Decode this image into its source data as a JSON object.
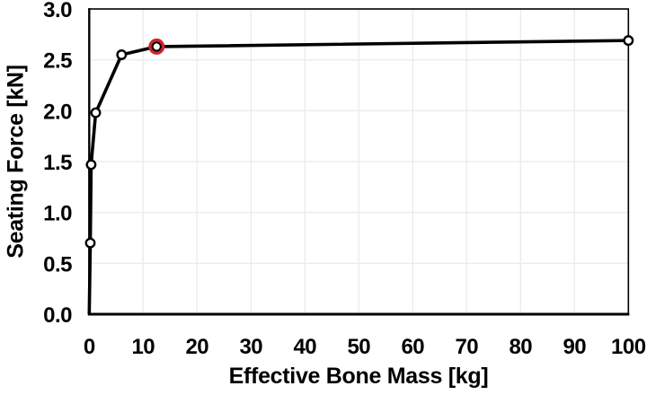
{
  "chart_data": {
    "type": "line",
    "title": "",
    "xlabel": "Effective Bone Mass [kg]",
    "ylabel": "Seating Force [kN]",
    "xlim": [
      0,
      100
    ],
    "ylim": [
      0,
      3
    ],
    "x_ticks": [
      "0",
      "10",
      "20",
      "30",
      "40",
      "50",
      "60",
      "70",
      "80",
      "90",
      "100"
    ],
    "y_ticks": [
      "0.0",
      "0.5",
      "1.0",
      "1.5",
      "2.0",
      "2.5",
      "3.0"
    ],
    "grid": true,
    "legend": "none",
    "background": "#ffffff",
    "axis_color": "#000000",
    "grid_color": "#ebebeb",
    "series": [
      {
        "name": "seating-force-vs-bone-mass",
        "color": "#000000",
        "marker": "open-circle",
        "marker_fill": "#ffffff",
        "points": [
          {
            "x": 0,
            "y": 0,
            "marker": false
          },
          {
            "x": 0.2,
            "y": 0.7,
            "marker": true
          },
          {
            "x": 0.35,
            "y": 1.47,
            "marker": true
          },
          {
            "x": 1.2,
            "y": 1.98,
            "marker": true
          },
          {
            "x": 6,
            "y": 2.55,
            "marker": true
          },
          {
            "x": 12.5,
            "y": 2.63,
            "marker": true
          },
          {
            "x": 100,
            "y": 2.69,
            "marker": true
          }
        ]
      }
    ],
    "annotations": [
      {
        "type": "highlight-ring",
        "x": 12.5,
        "y": 2.63,
        "color": "#d2232a"
      }
    ]
  }
}
